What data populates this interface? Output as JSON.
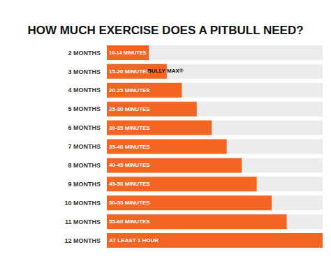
{
  "chart_data": {
    "type": "bar",
    "orientation": "horizontal",
    "title": "HOW MUCH EXERCISE DOES A PITBULL NEED?",
    "annotations": [
      "BULLY MAX®"
    ],
    "categories": [
      "2 MONTHS",
      "3 MONTHS",
      "4 MONTHS",
      "5 MONTHS",
      "6 MONTHS",
      "7 MONTHS",
      "8 MONTHS",
      "9 MONTHS",
      "10 MONTHS",
      "11 MONTHS",
      "12 MONTHS"
    ],
    "values": [
      14,
      20,
      25,
      30,
      35,
      40,
      45,
      50,
      55,
      60,
      72
    ],
    "value_labels": [
      "10-14 MINUTES",
      "15-20 MINUTES",
      "20-25 MINUTES",
      "25-30 MINUTES",
      "30-35 MINUTES",
      "35-40 MINUTES",
      "40-45 MINUTES",
      "45-50 MINUTES",
      "50-55 MINUTES",
      "55-60 MINUTES",
      "AT LEAST 1 HOUR"
    ],
    "color": "#f26522",
    "xlim": [
      0,
      72
    ],
    "data_labels": true,
    "tick_labels": "y",
    "grid": false
  }
}
